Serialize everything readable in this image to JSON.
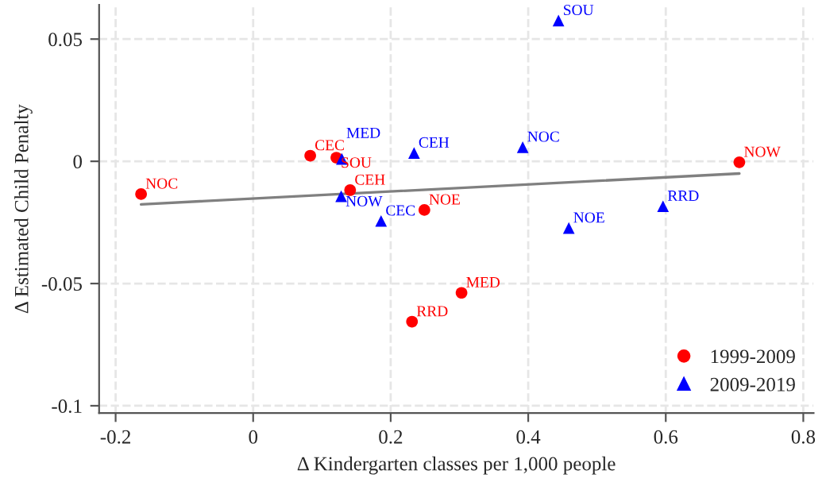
{
  "chart_data": {
    "type": "scatter",
    "xlabel": "Δ Kindergarten classes per 1,000 people",
    "ylabel": "Δ Estimated Child Penalty",
    "xlim": [
      -0.224,
      0.815
    ],
    "ylim": [
      -0.103,
      0.064
    ],
    "xticks": [
      {
        "value": -0.2,
        "label": "-0.2"
      },
      0,
      0.2,
      0.4,
      0.6,
      0.8
    ],
    "yticks": [
      {
        "value": -0.1,
        "label": "-0.1"
      },
      {
        "value": -0.05,
        "label": "-0.05"
      },
      0,
      0.05
    ],
    "grid": true,
    "legend": "bottom right",
    "series": [
      {
        "name": "1999-2009",
        "marker": "circle",
        "color": "#ff0000",
        "x": [
          -0.163,
          0.083,
          0.121,
          0.141,
          0.249,
          0.707,
          0.231,
          0.303
        ],
        "values": [
          -0.0134,
          0.0023,
          0.0015,
          -0.0118,
          -0.0199,
          -0.0004,
          -0.0656,
          -0.0538
        ],
        "value_labels": [
          "NOC",
          "CEC",
          "SOU",
          "CEH",
          "NOE",
          "NOW",
          "RRD",
          "MED"
        ]
      },
      {
        "name": "2009-2019",
        "marker": "triangle",
        "color": "#0000ff",
        "x": [
          0.129,
          0.234,
          0.128,
          0.186,
          0.444,
          0.392,
          0.596,
          0.459
        ],
        "values": [
          0.001,
          0.0034,
          -0.0143,
          -0.0244,
          0.0576,
          0.0058,
          -0.0184,
          -0.0273
        ],
        "value_labels": [
          "MED",
          "CEH",
          "NOW",
          "CEC",
          "SOU",
          "NOC",
          "RRD",
          "NOE"
        ]
      },
      {
        "type": "line",
        "color": "#808080",
        "x": [
          -0.163,
          0.707
        ],
        "values": [
          -0.0176,
          -0.005
        ]
      }
    ]
  }
}
